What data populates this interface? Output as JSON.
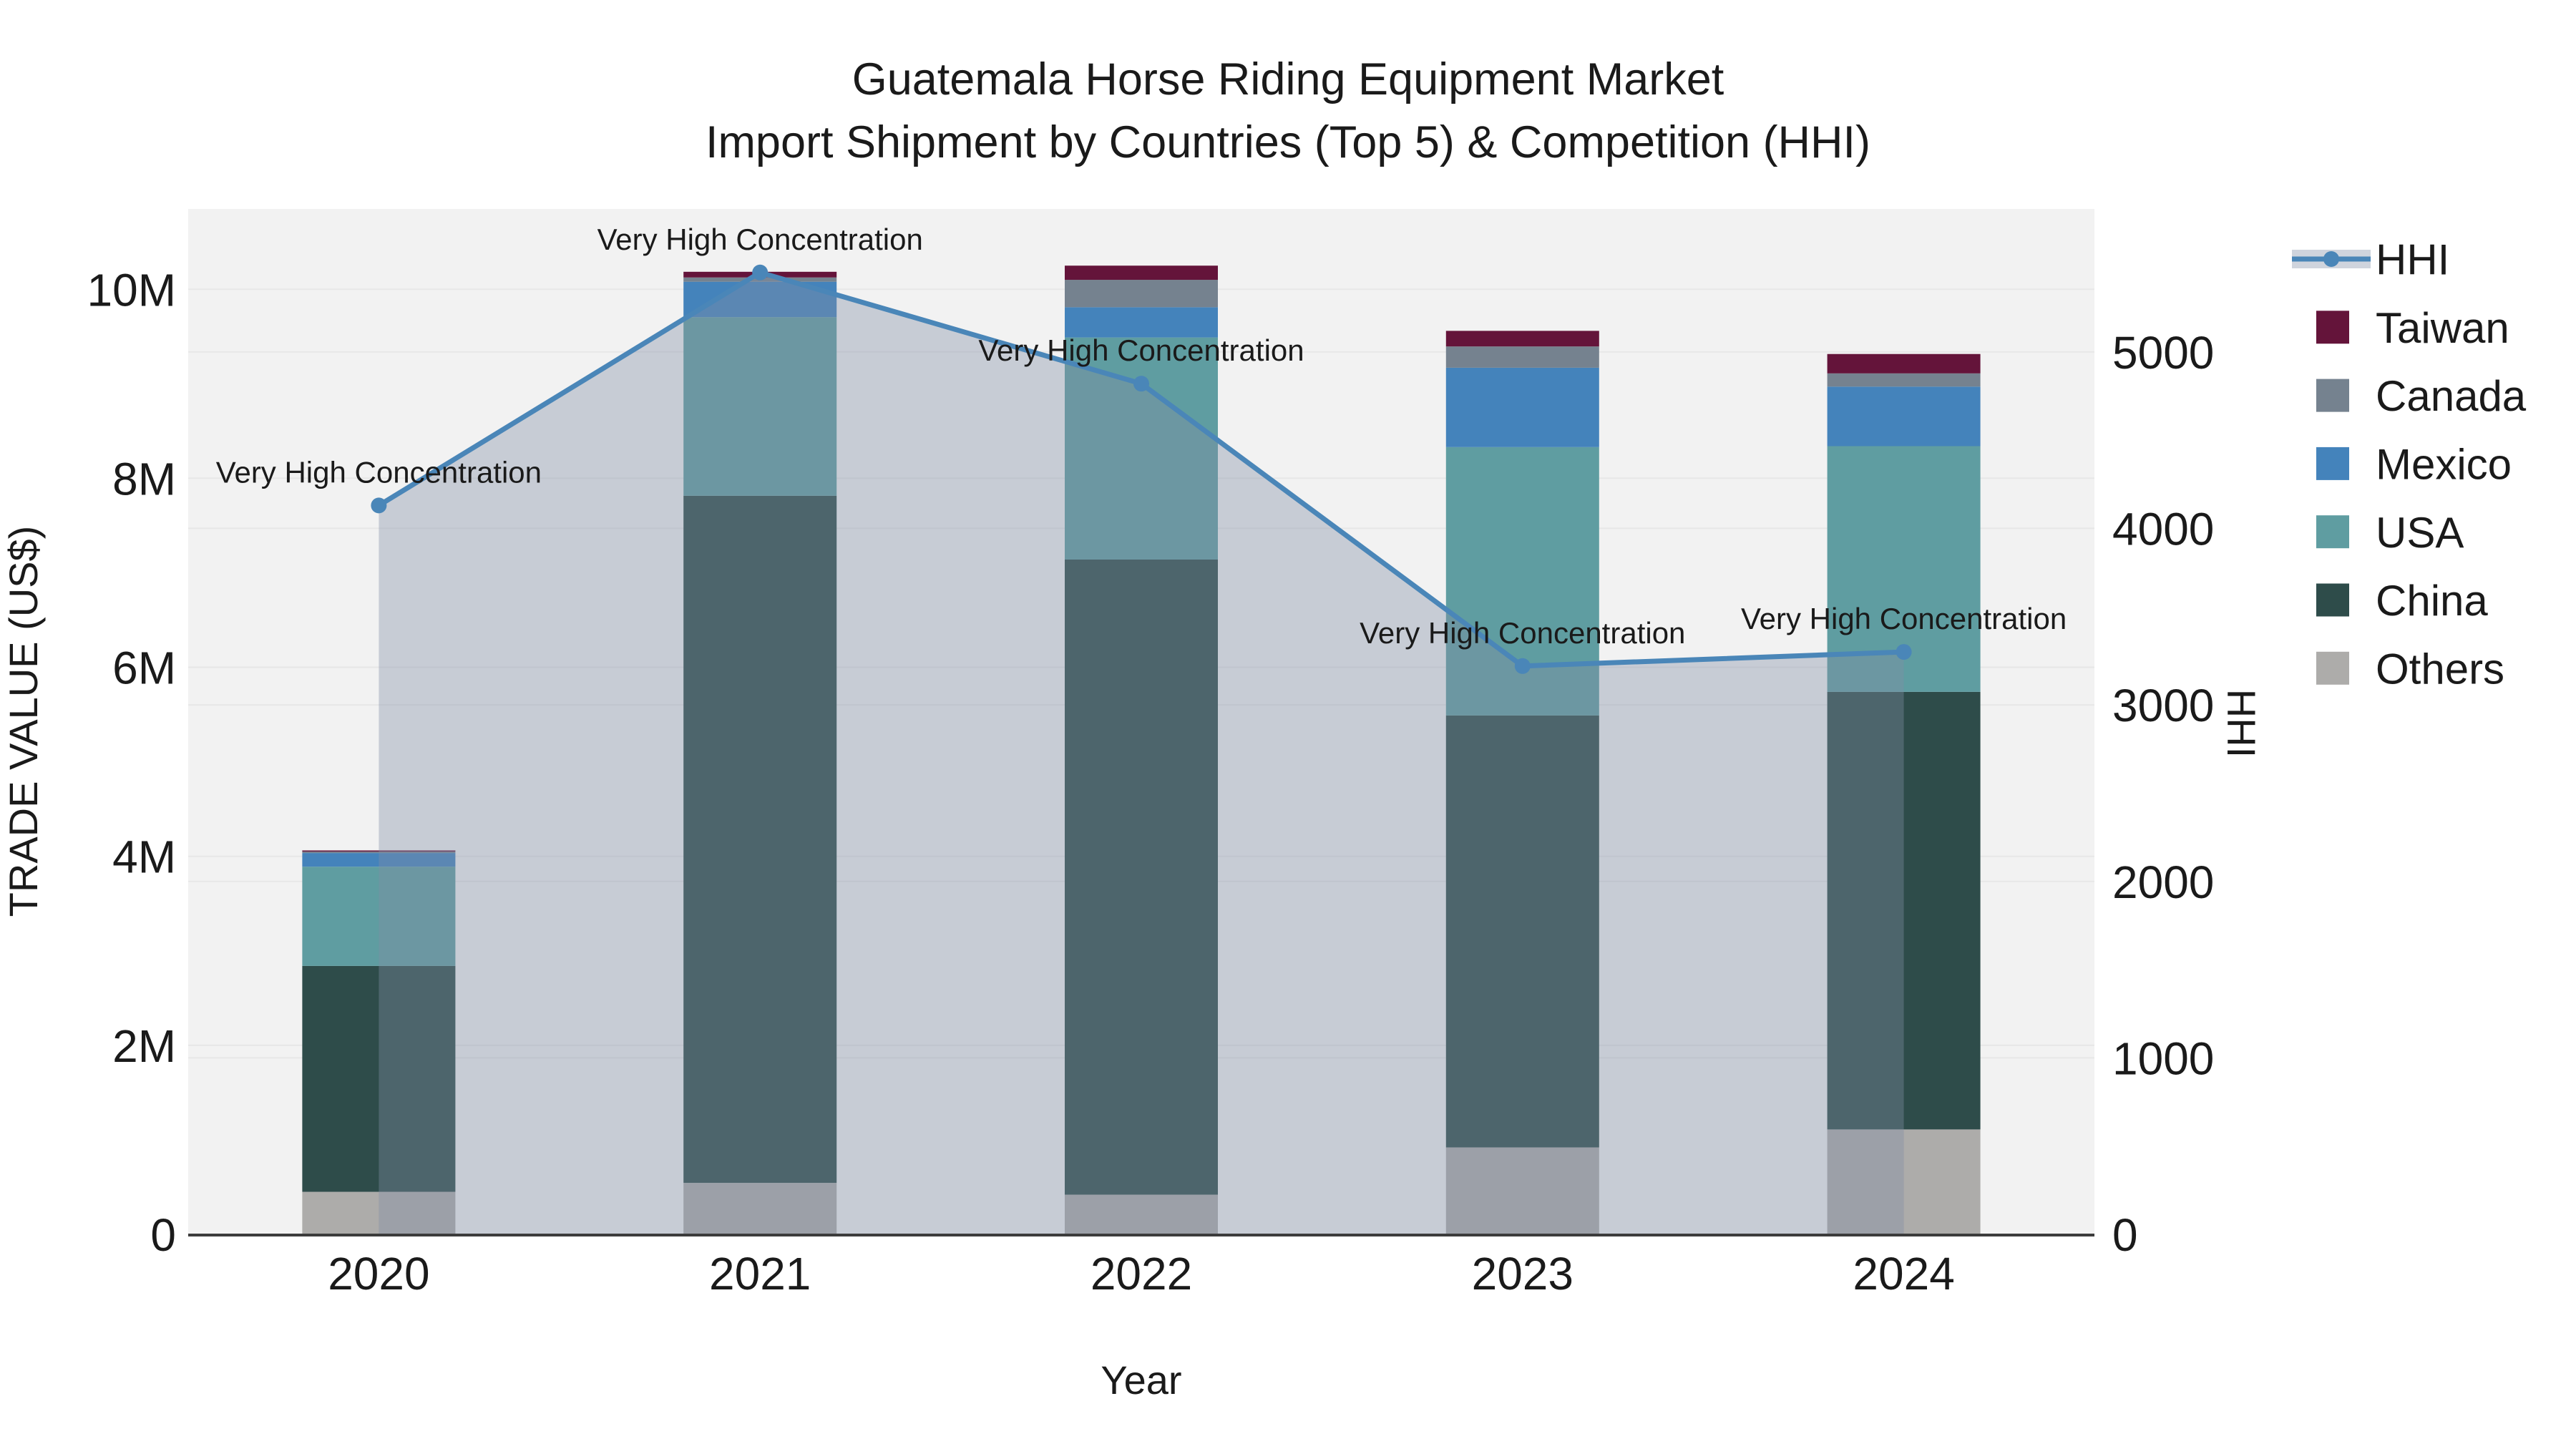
{
  "style": {
    "page_background": "#ffffff",
    "plot_background": "#f2f2f2",
    "gridline_color": "#e7e7e7",
    "axis_line_color": "#3c3c3c",
    "text_color": "#1a1a1a",
    "hhi_line_color": "#4a86b8",
    "hhi_fill_color": "rgba(128,142,166,0.38)"
  },
  "chart_data": {
    "type": "combo: stacked-bar (left axis) + line with area fill (right axis)",
    "title_line1": "Guatemala Horse Riding Equipment Market",
    "title_line2": "Import Shipment by Countries (Top 5) & Competition (HHI)",
    "xlabel": "Year",
    "categories": [
      "2020",
      "2021",
      "2022",
      "2023",
      "2024"
    ],
    "bar_unit": "US$",
    "series": [
      {
        "name": "Others",
        "color": "#adacaa",
        "values": [
          450000,
          545000,
          420000,
          920000,
          1110000
        ]
      },
      {
        "name": "China",
        "color": "#2e4c4a",
        "values": [
          2390000,
          7270000,
          6720000,
          4570000,
          4630000
        ]
      },
      {
        "name": "USA",
        "color": "#5f9da1",
        "values": [
          1050000,
          1890000,
          2350000,
          2840000,
          2600000
        ]
      },
      {
        "name": "Mexico",
        "color": "#4483bb",
        "values": [
          145000,
          375000,
          320000,
          840000,
          630000
        ]
      },
      {
        "name": "Canada",
        "color": "#75828f",
        "values": [
          15000,
          45000,
          290000,
          225000,
          140000
        ]
      },
      {
        "name": "Taiwan",
        "color": "#64143a",
        "values": [
          12000,
          60000,
          150000,
          165000,
          205000
        ]
      }
    ],
    "line_series": {
      "name": "HHI",
      "axis": "right",
      "color": "#4a86b8",
      "fill": "rgba(128,142,166,0.38)",
      "values": [
        4130,
        5450,
        4820,
        3220,
        3300
      ]
    },
    "annotation_text": "Very High Concentration",
    "axes": {
      "left": {
        "label": "TRADE VALUE (US$)",
        "min": 0,
        "max": 10850000,
        "tick_values": [
          0,
          2000000,
          4000000,
          6000000,
          8000000,
          10000000
        ],
        "tick_labels": [
          "0",
          "2M",
          "4M",
          "6M",
          "8M",
          "10M"
        ]
      },
      "right": {
        "label": "HHI",
        "min": 0,
        "max": 5810,
        "tick_values": [
          0,
          1000,
          2000,
          3000,
          4000,
          5000
        ],
        "tick_labels": [
          "0",
          "1000",
          "2000",
          "3000",
          "4000",
          "5000"
        ]
      }
    },
    "legend_order": [
      "HHI",
      "Taiwan",
      "Canada",
      "Mexico",
      "USA",
      "China",
      "Others"
    ]
  }
}
